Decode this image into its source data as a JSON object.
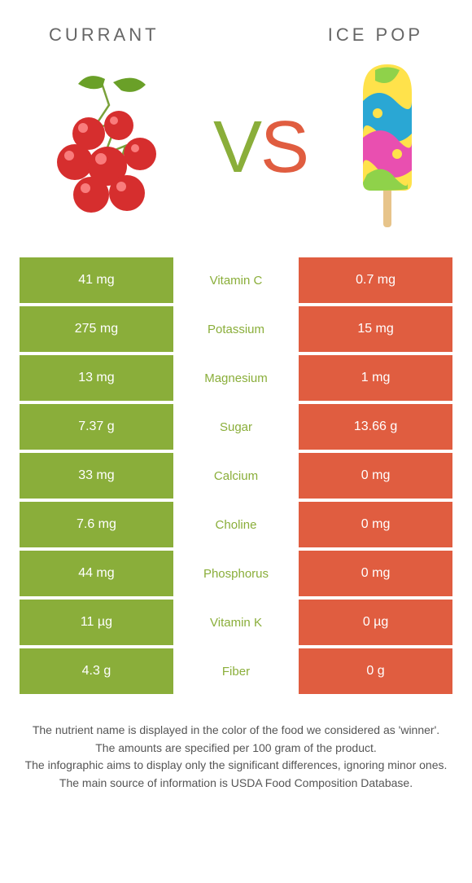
{
  "header": {
    "left_title": "CURRANT",
    "right_title": "ICE POP"
  },
  "vs": {
    "v": "V",
    "s": "S"
  },
  "colors": {
    "left": "#8aae3a",
    "right": "#e05d40",
    "bg": "#ffffff",
    "text": "#666666"
  },
  "rows": [
    {
      "left": "41 mg",
      "label": "Vitamin C",
      "right": "0.7 mg",
      "winner": "left"
    },
    {
      "left": "275 mg",
      "label": "Potassium",
      "right": "15 mg",
      "winner": "left"
    },
    {
      "left": "13 mg",
      "label": "Magnesium",
      "right": "1 mg",
      "winner": "left"
    },
    {
      "left": "7.37 g",
      "label": "Sugar",
      "right": "13.66 g",
      "winner": "left"
    },
    {
      "left": "33 mg",
      "label": "Calcium",
      "right": "0 mg",
      "winner": "left"
    },
    {
      "left": "7.6 mg",
      "label": "Choline",
      "right": "0 mg",
      "winner": "left"
    },
    {
      "left": "44 mg",
      "label": "Phosphorus",
      "right": "0 mg",
      "winner": "left"
    },
    {
      "left": "11 µg",
      "label": "Vitamin K",
      "right": "0 µg",
      "winner": "left"
    },
    {
      "left": "4.3 g",
      "label": "Fiber",
      "right": "0 g",
      "winner": "left"
    }
  ],
  "footnotes": [
    "The nutrient name is displayed in the color of the food we considered as 'winner'.",
    "The amounts are specified per 100 gram of the product.",
    "The infographic aims to display only the significant differences, ignoring minor ones.",
    "The main source of information is USDA Food Composition Database."
  ],
  "currant_svg": {
    "berry_fill": "#d62e2e",
    "berry_light": "#ff8a8a",
    "leaf_fill": "#6aa028",
    "stem": "#7aa13a"
  },
  "icepop_svg": {
    "body_top": "#ffe24b",
    "swirl1": "#2aa7d4",
    "swirl2": "#e94fb0",
    "swirl3": "#8fd24a",
    "stick": "#e7c48a"
  }
}
